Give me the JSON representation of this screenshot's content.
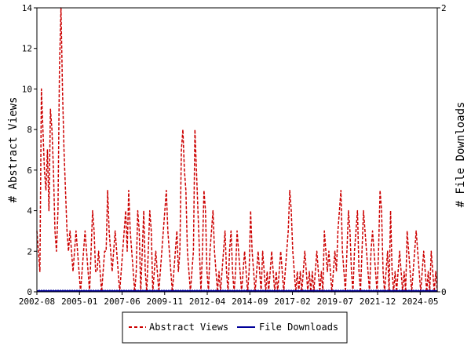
{
  "chart_data": {
    "type": "line",
    "x_tick_labels": [
      "2002-08",
      "2005-01",
      "2007-06",
      "2009-11",
      "2012-04",
      "2014-09",
      "2017-02",
      "2019-07",
      "2021-12",
      "2024-05"
    ],
    "y_left_label": "# Abstract Views",
    "y_right_label": "# File Downloads",
    "y_left_range": [
      0,
      14
    ],
    "y_left_ticks": [
      "0",
      "2",
      "4",
      "6",
      "8",
      "10",
      "12",
      "14"
    ],
    "y_right_range": [
      0,
      2
    ],
    "y_right_ticks": [
      "0",
      "2"
    ],
    "grid": false,
    "legend_position": "bottom-center",
    "colors": {
      "abstract_views": "#cc0000",
      "file_downloads": "#000099"
    },
    "series": [
      {
        "name": "Abstract Views",
        "axis": "left",
        "style": "dashed",
        "values": [
          3,
          2,
          1,
          10,
          8,
          6,
          5,
          7,
          4,
          9,
          8,
          6,
          3,
          2,
          4,
          11,
          14,
          10,
          7,
          5,
          3,
          2,
          3,
          2,
          1,
          2,
          3,
          2,
          1,
          0,
          1,
          2,
          3,
          2,
          1,
          0,
          2,
          4,
          3,
          1,
          1,
          2,
          1,
          0,
          1,
          2,
          2,
          5,
          3,
          2,
          1,
          2,
          3,
          2,
          1,
          0,
          1,
          2,
          3,
          4,
          2,
          5,
          3,
          2,
          1,
          0,
          1,
          4,
          3,
          0,
          2,
          4,
          1,
          0,
          2,
          4,
          3,
          0,
          1,
          2,
          1,
          0,
          1,
          2,
          3,
          4,
          5,
          3,
          2,
          1,
          0,
          1,
          2,
          3,
          1,
          2,
          7,
          8,
          6,
          5,
          2,
          1,
          0,
          1,
          2,
          8,
          6,
          4,
          2,
          0,
          2,
          5,
          4,
          1,
          0,
          2,
          3,
          4,
          2,
          1,
          0,
          1,
          0,
          1,
          2,
          3,
          1,
          0,
          2,
          3,
          1,
          0,
          1,
          3,
          2,
          1,
          0,
          1,
          2,
          1,
          0,
          1,
          4,
          2,
          1,
          0,
          1,
          2,
          1,
          0,
          2,
          1,
          0,
          1,
          0,
          1,
          2,
          1,
          0,
          1,
          0,
          1,
          2,
          1,
          0,
          1,
          2,
          3,
          5,
          4,
          2,
          1,
          0,
          1,
          0,
          1,
          0,
          1,
          2,
          1,
          0,
          1,
          0,
          1,
          0,
          1,
          2,
          1,
          0,
          1,
          0,
          3,
          2,
          1,
          2,
          1,
          0,
          1,
          2,
          1,
          3,
          4,
          5,
          2,
          1,
          0,
          2,
          4,
          3,
          1,
          0,
          2,
          3,
          4,
          1,
          0,
          2,
          4,
          3,
          2,
          1,
          0,
          2,
          3,
          2,
          1,
          0,
          2,
          5,
          4,
          1,
          0,
          1,
          2,
          0,
          4,
          1,
          0,
          1,
          0,
          1,
          2,
          1,
          0,
          1,
          0,
          3,
          2,
          1,
          0,
          1,
          2,
          3,
          2,
          1,
          0,
          1,
          2,
          1,
          0,
          1,
          0,
          2,
          1,
          0,
          1,
          0
        ]
      },
      {
        "name": "File Downloads",
        "axis": "right",
        "style": "solid",
        "values_constant": 0
      }
    ]
  }
}
